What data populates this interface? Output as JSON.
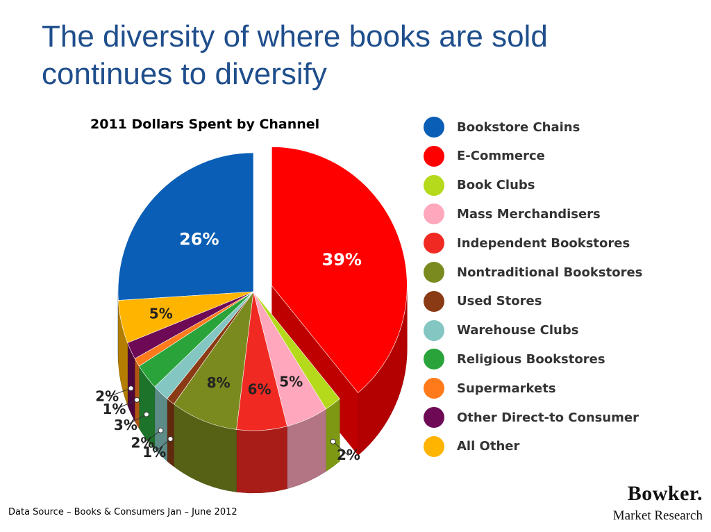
{
  "slide": {
    "title": "The diversity of where books are sold continues to diversify",
    "source": "Data Source – Books & Consumers Jan – June 2012",
    "brand_name": "Bowker.",
    "brand_sub": "Market Research"
  },
  "chart_data": {
    "type": "pie",
    "title": "2011 Dollars Spent by Channel",
    "unit": "%",
    "categories": [
      "Bookstore Chains",
      "E-Commerce",
      "Book Clubs",
      "Mass Merchandisers",
      "Independent Bookstores",
      "Nontraditional Bookstores",
      "Used Stores",
      "Warehouse Clubs",
      "Religious Bookstores",
      "Supermarkets",
      "Other Direct-to Consumer",
      "All Other"
    ],
    "values": [
      26,
      39,
      2,
      5,
      6,
      8,
      1,
      2,
      3,
      1,
      2,
      5
    ],
    "labels": [
      "26%",
      "39%",
      "2%",
      "5%",
      "6%",
      "8%",
      "1%",
      "2%",
      "3%",
      "1%",
      "2%",
      "5%"
    ],
    "colors": [
      "#0a5eb5",
      "#ff0000",
      "#b5d91b",
      "#ffa7bc",
      "#f02a22",
      "#7b8a1f",
      "#8a3a14",
      "#83c6c2",
      "#2aa43a",
      "#ff7a1a",
      "#6e0a55",
      "#ffb400"
    ],
    "exploded": [
      "E-Commerce"
    ],
    "legend": "right"
  }
}
